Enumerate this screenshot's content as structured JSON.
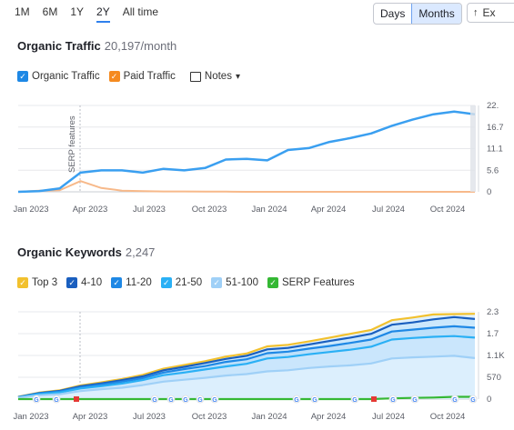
{
  "range_tabs": [
    "1M",
    "6M",
    "1Y",
    "2Y",
    "All time"
  ],
  "active_range": "2Y",
  "granularity": {
    "days": "Days",
    "months": "Months",
    "selected": "Months"
  },
  "export_label": "Ex",
  "traffic": {
    "title": "Organic Traffic",
    "value": "20,197/month",
    "legend": {
      "organic": "Organic Traffic",
      "paid": "Paid Traffic",
      "notes": "Notes"
    },
    "colors": {
      "organic": "#3a9ff0",
      "paid": "#f7b98a",
      "organic_checkbox": "#1e88e5",
      "paid_checkbox": "#f58a1f"
    },
    "serp_label": "SERP features",
    "y_ticks": [
      "22.",
      "16.7",
      "11.1",
      "5.6",
      "0"
    ],
    "x_ticks": [
      "Jan 2023",
      "Apr 2023",
      "Jul 2023",
      "Oct 2023",
      "Jan 2024",
      "Apr 2024",
      "Jul 2024",
      "Oct 2024"
    ]
  },
  "keywords": {
    "title": "Organic Keywords",
    "value": "2,247",
    "legend": [
      "Top 3",
      "4-10",
      "11-20",
      "21-50",
      "51-100",
      "SERP Features"
    ],
    "legend_colors": [
      "#f2c12e",
      "#1a5fbf",
      "#1e88e5",
      "#2ab0f5",
      "#9fd0f7",
      "#35b834"
    ],
    "y_ticks": [
      "2.3",
      "1.7",
      "1.1K",
      "570",
      "0"
    ],
    "x_ticks": [
      "Jan 2023",
      "Apr 2023",
      "Jul 2023",
      "Oct 2023",
      "Jan 2024",
      "Apr 2024",
      "Jul 2024",
      "Oct 2024"
    ]
  },
  "chart_data": [
    {
      "type": "line",
      "title": "Organic Traffic",
      "x": [
        "Jan 2023",
        "Feb 2023",
        "Mar 2023",
        "Apr 2023",
        "May 2023",
        "Jun 2023",
        "Jul 2023",
        "Aug 2023",
        "Sep 2023",
        "Oct 2023",
        "Nov 2023",
        "Dec 2023",
        "Jan 2024",
        "Feb 2024",
        "Mar 2024",
        "Apr 2024",
        "May 2024",
        "Jun 2024",
        "Jul 2024",
        "Aug 2024",
        "Sep 2024",
        "Oct 2024",
        "Nov 2024"
      ],
      "series": [
        {
          "name": "Organic Traffic",
          "values": [
            0,
            200,
            900,
            5000,
            5600,
            5600,
            5000,
            6000,
            5600,
            6200,
            8400,
            8600,
            8200,
            10900,
            11400,
            13000,
            14000,
            15200,
            17200,
            18800,
            20200,
            20900,
            20197
          ]
        },
        {
          "name": "Paid Traffic",
          "values": [
            0,
            300,
            400,
            2800,
            1000,
            300,
            200,
            100,
            100,
            50,
            50,
            0,
            0,
            0,
            0,
            0,
            0,
            0,
            0,
            0,
            0,
            0,
            0
          ]
        }
      ],
      "ylim": [
        0,
        22500
      ]
    },
    {
      "type": "area",
      "title": "Organic Keywords",
      "x": [
        "Jan 2023",
        "Feb 2023",
        "Mar 2023",
        "Apr 2023",
        "May 2023",
        "Jun 2023",
        "Jul 2023",
        "Aug 2023",
        "Sep 2023",
        "Oct 2023",
        "Nov 2023",
        "Dec 2023",
        "Jan 2024",
        "Feb 2024",
        "Mar 2024",
        "Apr 2024",
        "May 2024",
        "Jun 2024",
        "Jul 2024",
        "Aug 2024",
        "Sep 2024",
        "Oct 2024",
        "Nov 2024"
      ],
      "series": [
        {
          "name": "Top 3",
          "values": [
            60,
            170,
            230,
            360,
            440,
            530,
            640,
            800,
            900,
            1000,
            1120,
            1200,
            1390,
            1430,
            1520,
            1620,
            1720,
            1820,
            2080,
            2150,
            2230,
            2240,
            2247
          ]
        },
        {
          "name": "4-10",
          "values": [
            55,
            160,
            215,
            340,
            415,
            500,
            600,
            760,
            850,
            950,
            1060,
            1140,
            1310,
            1350,
            1440,
            1530,
            1620,
            1720,
            1960,
            2020,
            2100,
            2160,
            2110
          ]
        },
        {
          "name": "11-20",
          "values": [
            50,
            150,
            200,
            310,
            380,
            460,
            550,
            700,
            790,
            870,
            980,
            1050,
            1210,
            1250,
            1330,
            1400,
            1480,
            1570,
            1780,
            1830,
            1880,
            1920,
            1880
          ]
        },
        {
          "name": "21-50",
          "values": [
            45,
            130,
            175,
            280,
            340,
            410,
            500,
            630,
            700,
            780,
            860,
            930,
            1070,
            1110,
            1180,
            1240,
            1300,
            1380,
            1570,
            1610,
            1640,
            1660,
            1620
          ]
        },
        {
          "name": "51-100",
          "values": [
            35,
            100,
            130,
            210,
            260,
            300,
            370,
            460,
            510,
            560,
            620,
            660,
            730,
            760,
            820,
            860,
            890,
            940,
            1070,
            1100,
            1120,
            1140,
            1080
          ]
        },
        {
          "name": "SERP Features",
          "values": [
            0,
            0,
            0,
            0,
            0,
            0,
            0,
            0,
            0,
            0,
            0,
            0,
            0,
            0,
            0,
            0,
            0,
            0,
            20,
            30,
            40,
            60,
            60
          ]
        }
      ],
      "ylim": [
        0,
        2300
      ]
    }
  ]
}
